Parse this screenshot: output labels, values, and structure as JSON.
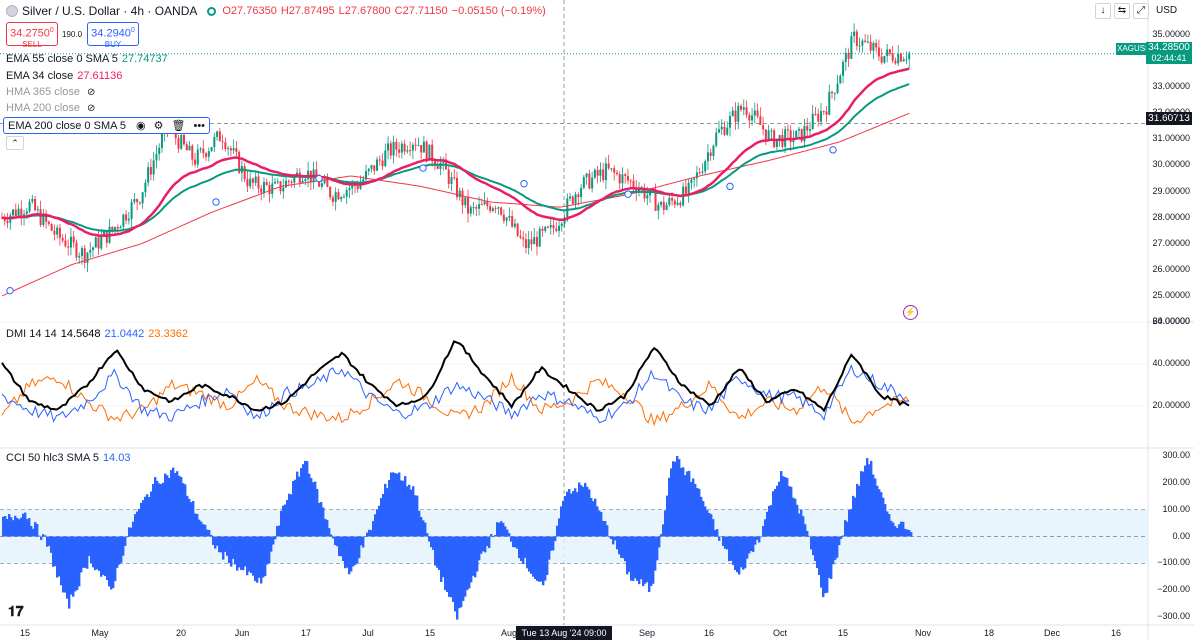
{
  "header": {
    "symbol": "Silver / U.S. Dollar · 4h · OANDA",
    "ohlc_o": "O27.76350",
    "ohlc_h": "H27.87495",
    "ohlc_l": "L27.67800",
    "ohlc_c": "C27.71150",
    "change": "−0.05150 (−0.19%)",
    "sell_price": "34.2750",
    "sell_sup": "0",
    "sell_label": "SELL",
    "spread": "190.0",
    "buy_price": "34.2940",
    "buy_sup": "0",
    "buy_label": "BUY",
    "currency": "USD"
  },
  "legends": {
    "ema55": {
      "label": "EMA 55 close 0 SMA 5",
      "value": "27.74737",
      "color": "#089981"
    },
    "ema34": {
      "label": "EMA 34 close",
      "value": "27.61136",
      "color": "#e91e63"
    },
    "hma365": {
      "label": "HMA 365 close"
    },
    "hma200": {
      "label": "HMA 200 close"
    },
    "ema200": {
      "label": "EMA 200 close 0 SMA 5"
    },
    "dmi": {
      "label": "DMI 14 14",
      "v1": "14.5648",
      "v2": "21.0442",
      "v3": "23.3362"
    },
    "cci": {
      "label": "CCI 50 hlc3 SMA 5",
      "value": "14.03"
    }
  },
  "price_tags": {
    "symbol_tag": "XAGUSD",
    "last": "34.28500",
    "countdown": "02:44:41",
    "crosshair_price": "31.60713",
    "crosshair_time": "Tue 13 Aug '24   09:00"
  },
  "colors": {
    "candle_up": "#089981",
    "candle_down": "#f23645",
    "ema34": "#e91e63",
    "ema55": "#089981",
    "ema200": "#f23645",
    "dmi_adx": "#000000",
    "dmi_plus": "#2962ff",
    "dmi_minus": "#ff6d00",
    "cci": "#2962ff"
  },
  "chart_data": [
    {
      "type": "line",
      "pane": "price",
      "title": "Silver / U.S. Dollar · 4h · OANDA",
      "x_labels": [
        "15",
        "May",
        "20",
        "Jun",
        "17",
        "Jul",
        "15",
        "Aug",
        "Sep",
        "16",
        "Oct",
        "15",
        "Nov",
        "18",
        "Dec",
        "16"
      ],
      "y_ticks": [
        "35.00000",
        "34.00000",
        "33.00000",
        "32.00000",
        "31.00000",
        "30.00000",
        "29.00000",
        "28.00000",
        "27.00000",
        "26.00000",
        "25.00000",
        "24.00000"
      ],
      "ylim": [
        24,
        35.5
      ],
      "close_path_approx": [
        28.0,
        28.5,
        27.3,
        26.6,
        27.5,
        28.8,
        31.5,
        30.2,
        31.2,
        29.3,
        29.1,
        29.8,
        28.9,
        29.3,
        30.5,
        31.0,
        30.0,
        28.2,
        28.6,
        26.9,
        27.5,
        29.2,
        29.8,
        29.3,
        28.4,
        29.0,
        31.2,
        32.3,
        31.0,
        31.1,
        32.3,
        34.9,
        34.2,
        34.3
      ],
      "series": [
        {
          "name": "EMA 34 close",
          "last": 27.61136
        },
        {
          "name": "EMA 55 close 0 SMA 5",
          "last": 27.74737
        },
        {
          "name": "EMA 200 close 0 SMA 5"
        }
      ]
    },
    {
      "type": "line",
      "pane": "DMI",
      "title": "DMI 14 14",
      "y_ticks": [
        "60.00000",
        "40.00000",
        "20.00000"
      ],
      "ylim": [
        0,
        60
      ],
      "series": [
        {
          "name": "ADX",
          "last": 14.5648,
          "path_approx": [
            40,
            22,
            18,
            30,
            47,
            28,
            22,
            30,
            25,
            18,
            22,
            35,
            45,
            30,
            20,
            25,
            52,
            35,
            20,
            38,
            28,
            18,
            25,
            48,
            30,
            20,
            38,
            22,
            28,
            18,
            45,
            25,
            20
          ]
        },
        {
          "name": "+DI",
          "last": 21.0442,
          "path_approx": [
            25,
            18,
            14,
            22,
            35,
            18,
            15,
            22,
            28,
            14,
            26,
            30,
            38,
            24,
            16,
            20,
            30,
            24,
            16,
            26,
            22,
            14,
            20,
            36,
            22,
            18,
            34,
            25,
            24,
            16,
            38,
            30,
            24
          ]
        },
        {
          "name": "−DI",
          "last": 23.3362,
          "path_approx": [
            15,
            30,
            34,
            22,
            14,
            18,
            30,
            26,
            20,
            32,
            20,
            16,
            14,
            22,
            32,
            24,
            14,
            20,
            34,
            18,
            22,
            32,
            26,
            12,
            20,
            30,
            14,
            22,
            18,
            30,
            12,
            20,
            23
          ]
        }
      ]
    },
    {
      "type": "bar",
      "pane": "CCI",
      "title": "CCI 50 hlc3 SMA 5",
      "y_ticks": [
        "300.00",
        "200.00",
        "100.00",
        "0.00",
        "−100.00",
        "−200.00",
        "−300.00"
      ],
      "ylim": [
        -330,
        330
      ],
      "bands": [
        100,
        0,
        -100
      ],
      "last": 14.03,
      "path_approx": [
        60,
        90,
        -20,
        -260,
        -80,
        -200,
        60,
        200,
        250,
        80,
        -60,
        -120,
        -180,
        120,
        290,
        50,
        -150,
        30,
        250,
        180,
        -100,
        -300,
        -100,
        60,
        -80,
        -200,
        170,
        190,
        20,
        -150,
        -200,
        300,
        200,
        20,
        -150,
        0,
        250,
        70,
        -230,
        60,
        300,
        60,
        30
      ]
    }
  ]
}
